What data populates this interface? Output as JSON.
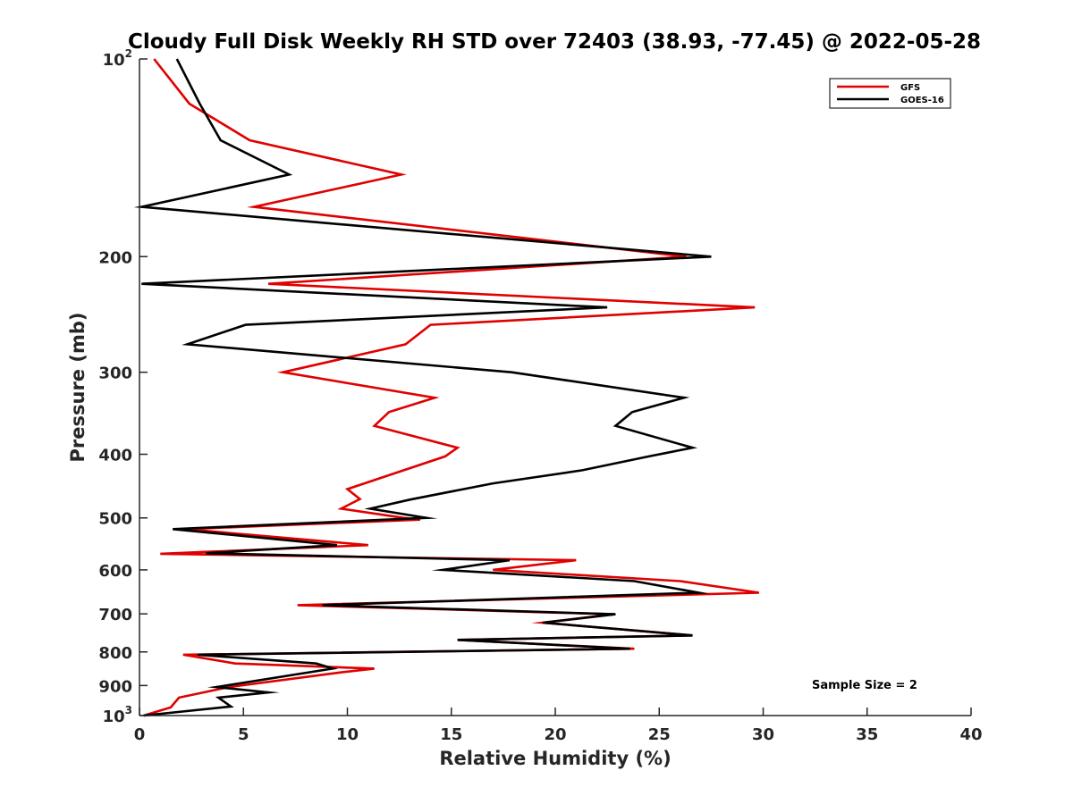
{
  "chart_data": {
    "type": "line",
    "orientation": "profile",
    "title": "Cloudy Full Disk Weekly RH STD over 72403 (38.93, -77.45) @ 2022-05-28",
    "xlabel": "Relative Humidity (%)",
    "ylabel": "Pressure (mb)",
    "xlim": [
      0,
      40
    ],
    "ylim": [
      100,
      1000
    ],
    "y_scale": "log",
    "y_reversed": true,
    "grid": false,
    "legend_position": "top-right",
    "x_ticks": [
      "0",
      "5",
      "10",
      "15",
      "20",
      "25",
      "30",
      "35",
      "40"
    ],
    "y_ticks": [
      {
        "base": "10",
        "exp": "2"
      },
      {
        "base": "200",
        "exp": ""
      },
      {
        "base": "300",
        "exp": ""
      },
      {
        "base": "400",
        "exp": ""
      },
      {
        "base": "500",
        "exp": ""
      },
      {
        "base": "600",
        "exp": ""
      },
      {
        "base": "700",
        "exp": ""
      },
      {
        "base": "800",
        "exp": ""
      },
      {
        "base": "900",
        "exp": ""
      },
      {
        "base": "10",
        "exp": "3"
      }
    ],
    "annotation": "Sample Size = 2",
    "series": [
      {
        "name": "GFS",
        "color": "#e00000",
        "points": [
          [
            0.7,
            100
          ],
          [
            2.4,
            117
          ],
          [
            5.3,
            133
          ],
          [
            12.6,
            150
          ],
          [
            5.5,
            168
          ],
          [
            26.3,
            200
          ],
          [
            6.2,
            220
          ],
          [
            29.6,
            239
          ],
          [
            14.0,
            254
          ],
          [
            12.8,
            272
          ],
          [
            6.9,
            300
          ],
          [
            14.2,
            328
          ],
          [
            12.0,
            345
          ],
          [
            11.3,
            362
          ],
          [
            15.3,
            391
          ],
          [
            14.7,
            403
          ],
          [
            10.0,
            452
          ],
          [
            10.6,
            468
          ],
          [
            9.7,
            484
          ],
          [
            12.7,
            500
          ],
          [
            13.5,
            503
          ],
          [
            2.2,
            520
          ],
          [
            11.0,
            550
          ],
          [
            3.4,
            563
          ],
          [
            1.0,
            567
          ],
          [
            21.0,
            580
          ],
          [
            17.0,
            600
          ],
          [
            26.0,
            624
          ],
          [
            29.8,
            650
          ],
          [
            7.6,
            679
          ],
          [
            22.8,
            701
          ],
          [
            19.4,
            722
          ],
          [
            26.6,
            755
          ],
          [
            15.3,
            767
          ],
          [
            23.8,
            791
          ],
          [
            2.1,
            808
          ],
          [
            4.6,
            833
          ],
          [
            11.3,
            848
          ],
          [
            9.6,
            860
          ],
          [
            4.3,
            905
          ],
          [
            1.9,
            939
          ],
          [
            1.5,
            972
          ],
          [
            0.2,
            1000
          ]
        ]
      },
      {
        "name": "GOES-16",
        "color": "#000000",
        "points": [
          [
            1.8,
            100
          ],
          [
            2.9,
            117
          ],
          [
            3.9,
            133
          ],
          [
            7.2,
            150
          ],
          [
            0.1,
            168
          ],
          [
            27.5,
            200
          ],
          [
            0.1,
            220
          ],
          [
            22.5,
            239
          ],
          [
            5.1,
            254
          ],
          [
            2.3,
            272
          ],
          [
            17.9,
            300
          ],
          [
            26.2,
            328
          ],
          [
            23.7,
            345
          ],
          [
            22.9,
            362
          ],
          [
            26.6,
            391
          ],
          [
            24.5,
            403
          ],
          [
            21.3,
            423
          ],
          [
            17.0,
            443
          ],
          [
            13.0,
            469
          ],
          [
            11.1,
            484
          ],
          [
            13.8,
            500
          ],
          [
            1.6,
            520
          ],
          [
            9.5,
            550
          ],
          [
            3.2,
            566
          ],
          [
            17.8,
            580
          ],
          [
            14.6,
            600
          ],
          [
            23.8,
            624
          ],
          [
            26.9,
            650
          ],
          [
            8.8,
            679
          ],
          [
            22.9,
            701
          ],
          [
            19.4,
            722
          ],
          [
            26.6,
            755
          ],
          [
            15.3,
            767
          ],
          [
            23.6,
            791
          ],
          [
            2.8,
            808
          ],
          [
            8.5,
            833
          ],
          [
            9.3,
            848
          ],
          [
            3.7,
            905
          ],
          [
            6.2,
            922
          ],
          [
            3.8,
            939
          ],
          [
            4.4,
            969
          ],
          [
            0.2,
            1000
          ]
        ]
      }
    ]
  }
}
